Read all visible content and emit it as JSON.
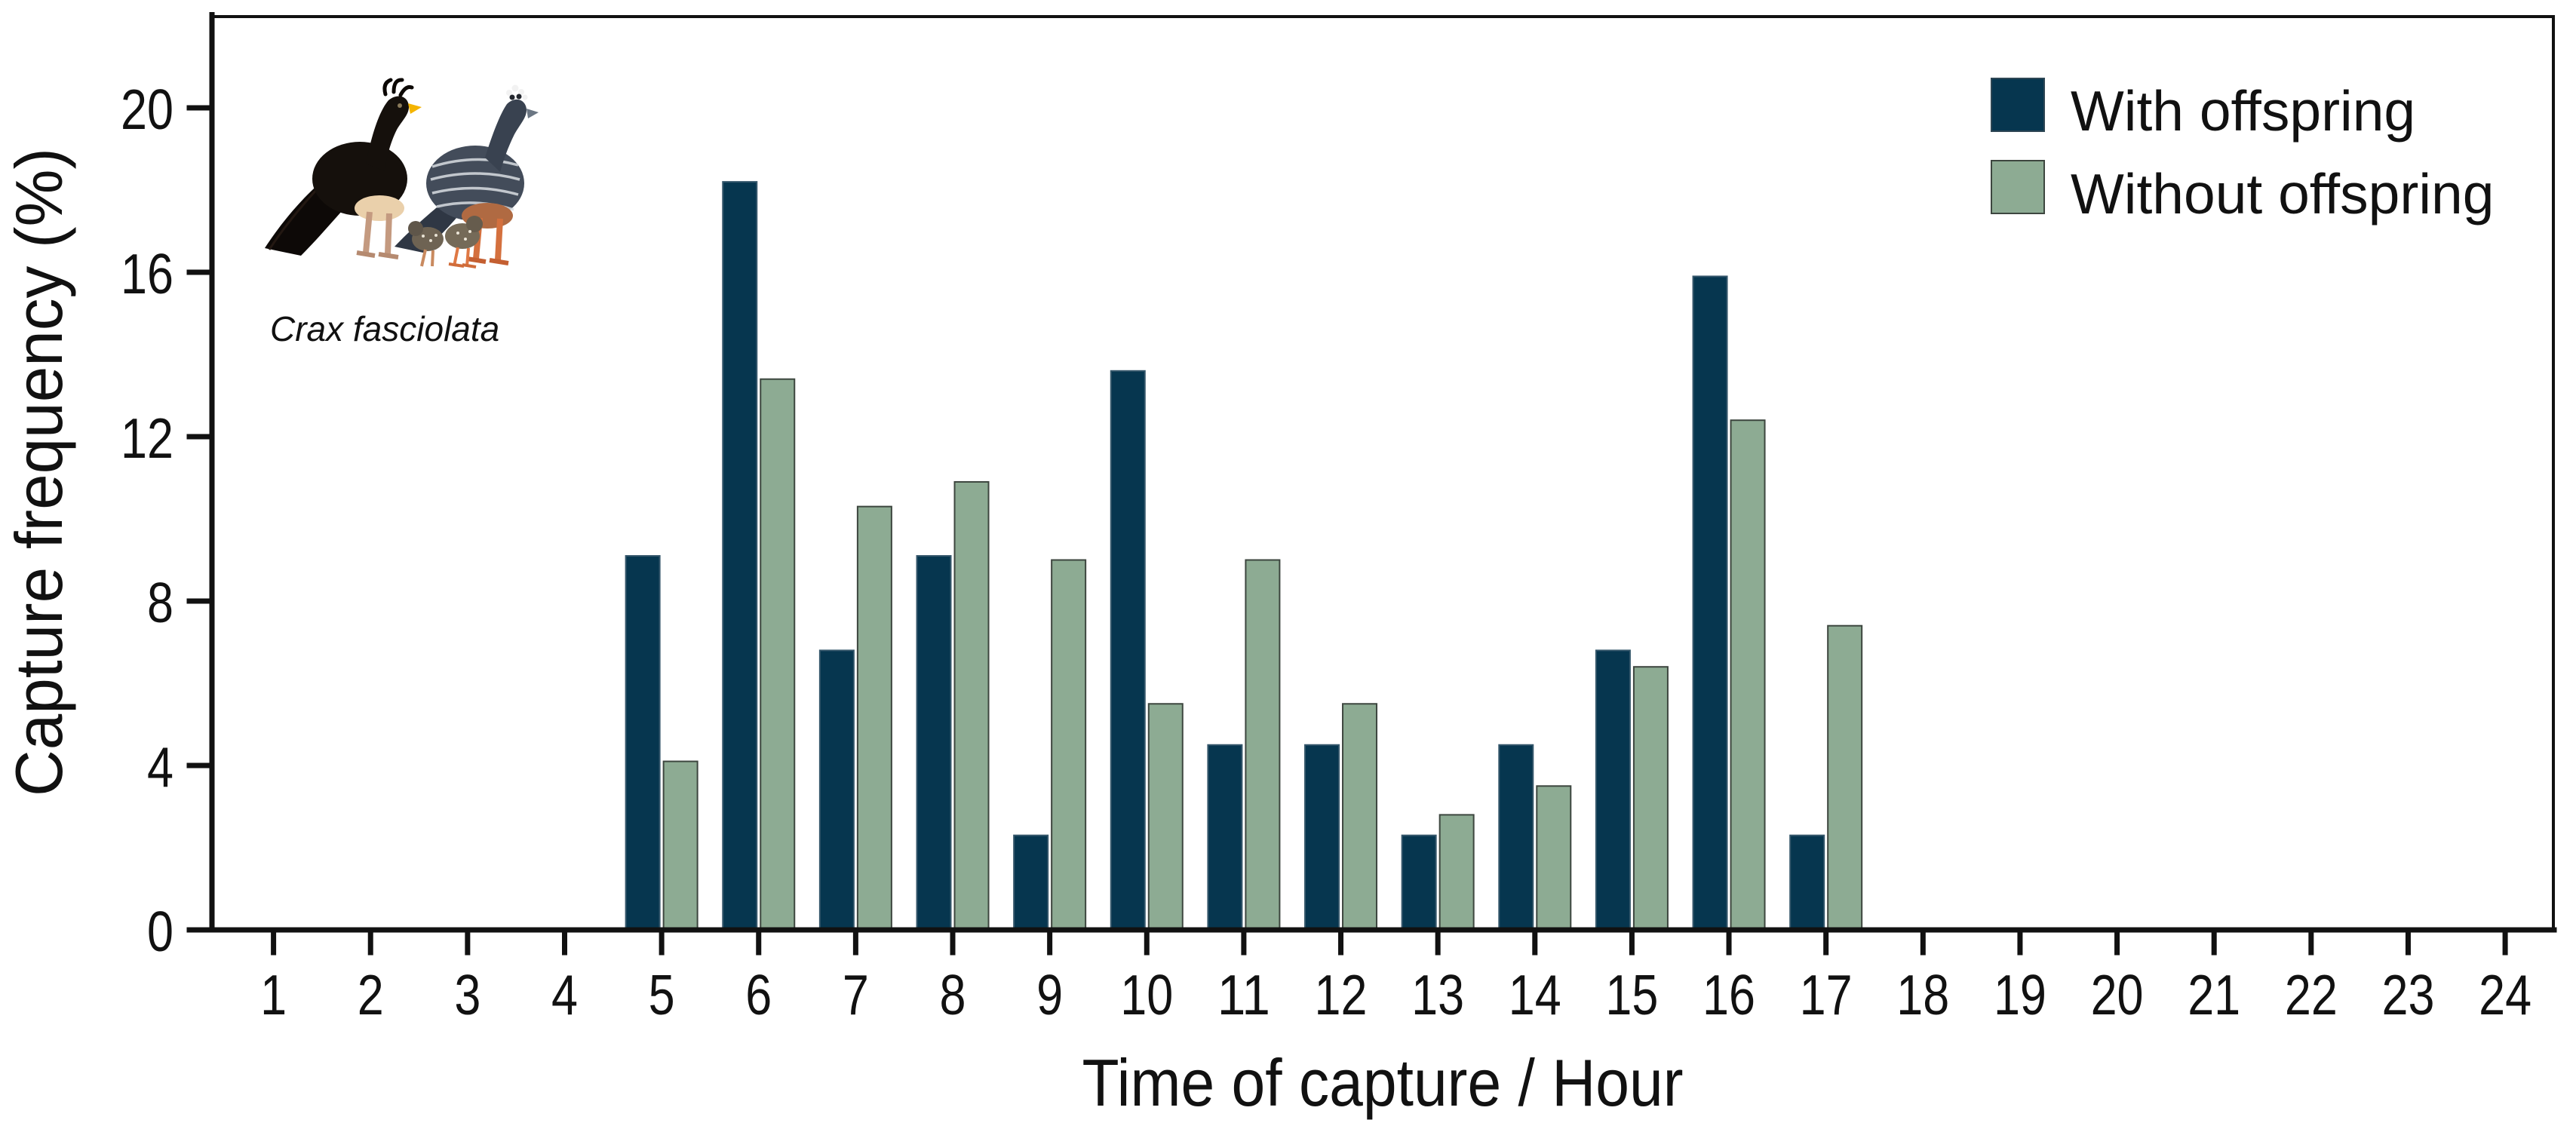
{
  "chart_data": {
    "type": "bar",
    "title": "",
    "xlabel": "Time of capture / Hour",
    "ylabel": "Capture frequency (%)",
    "x_ticks": [
      1,
      2,
      3,
      4,
      5,
      6,
      7,
      8,
      9,
      10,
      11,
      12,
      13,
      14,
      15,
      16,
      17,
      18,
      19,
      20,
      21,
      22,
      23,
      24
    ],
    "y_ticks": [
      0,
      4,
      8,
      12,
      16,
      20
    ],
    "ylim": [
      0,
      22.3
    ],
    "grid": false,
    "legend_position": "top-right-inside",
    "hours": [
      5,
      6,
      7,
      8,
      9,
      10,
      11,
      12,
      13,
      14,
      15,
      16,
      17
    ],
    "series": [
      {
        "name": "With offspring",
        "color": "#06364f",
        "values": [
          9.1,
          18.2,
          6.8,
          9.1,
          2.3,
          13.6,
          4.5,
          4.5,
          2.3,
          4.5,
          6.8,
          15.9,
          2.3
        ]
      },
      {
        "name": "Without offspring",
        "color": "#8dab93",
        "values": [
          4.1,
          13.4,
          10.3,
          10.9,
          9.0,
          5.5,
          9.0,
          5.5,
          2.8,
          3.5,
          6.4,
          12.4,
          7.4
        ]
      }
    ],
    "annotation": "Crax fasciolata"
  },
  "colors": {
    "with_offspring": "#06364f",
    "without_offspring": "#8dab93",
    "axis": "#111111",
    "background": "#ffffff"
  }
}
